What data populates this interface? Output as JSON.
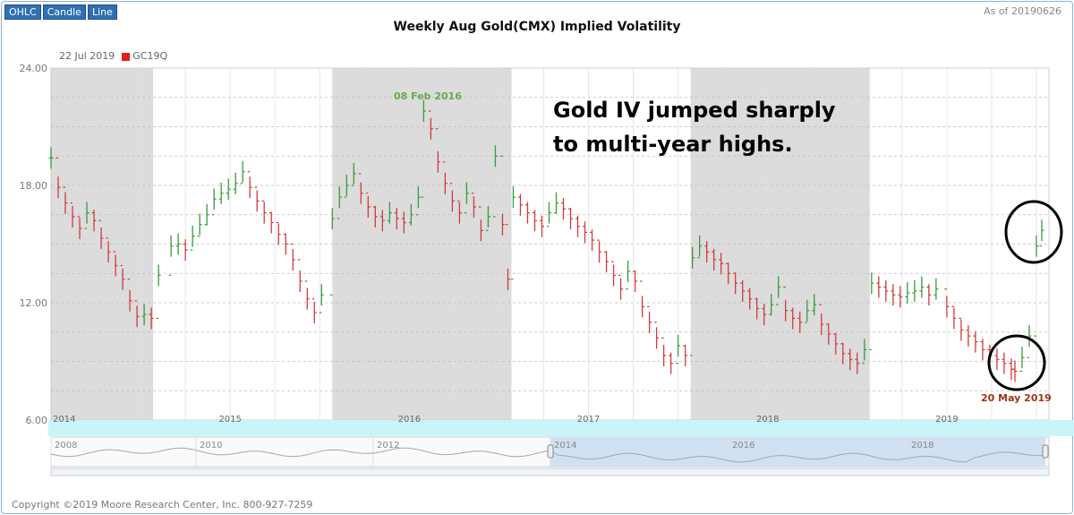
{
  "toolbar": {
    "ohlc": "OHLC",
    "candle": "Candle",
    "line": "Line"
  },
  "as_of": "As of 20190626",
  "legend": {
    "date": "22 Jul 2019",
    "symbol": "GC19Q"
  },
  "annotation": {
    "line1": "Gold IV jumped sharply",
    "line2": "to multi-year highs."
  },
  "callouts": {
    "peak": "08 Feb 2016",
    "low": "20 May 2019"
  },
  "copyright": "Copyright ©2019 Moore Research Center, Inc. 800-927-7259",
  "navigator": {
    "years": [
      "2008",
      "2010",
      "2012",
      "2014",
      "2016",
      "2018"
    ]
  },
  "colors": {
    "up": "#3a9a3a",
    "down": "#d23a3a",
    "shade": "#dcdcdc",
    "navigator_sel": "#cfe1f3"
  },
  "chart_data": {
    "type": "ohlc",
    "title": "Weekly Aug Gold(CMX) Implied Volatility",
    "xlabel": "",
    "ylabel": "",
    "ylim": [
      6,
      24
    ],
    "y_ticks": [
      "6.00",
      "12.00",
      "18.00",
      "24.00"
    ],
    "x_ticks": [
      "2014",
      "2015",
      "2016",
      "2017",
      "2018",
      "2019"
    ],
    "xlim": [
      2014.0,
      2019.57
    ],
    "shaded_periods": [
      [
        2014.0,
        2014.57
      ],
      [
        2015.57,
        2016.57
      ],
      [
        2017.57,
        2018.57
      ]
    ],
    "series": [
      {
        "name": "GC19Q",
        "points": [
          [
            2014.0,
            19.4
          ],
          [
            2014.04,
            17.9
          ],
          [
            2014.08,
            17.1
          ],
          [
            2014.12,
            16.4
          ],
          [
            2014.16,
            15.8
          ],
          [
            2014.2,
            16.6
          ],
          [
            2014.24,
            16.2
          ],
          [
            2014.28,
            15.3
          ],
          [
            2014.32,
            14.6
          ],
          [
            2014.36,
            13.9
          ],
          [
            2014.4,
            13.2
          ],
          [
            2014.44,
            12.1
          ],
          [
            2014.48,
            11.3
          ],
          [
            2014.52,
            11.4
          ],
          [
            2014.56,
            11.2
          ],
          [
            2014.6,
            13.4
          ],
          [
            2014.67,
            14.9
          ],
          [
            2014.71,
            15.0
          ],
          [
            2014.75,
            14.7
          ],
          [
            2014.79,
            15.4
          ],
          [
            2014.83,
            16.0
          ],
          [
            2014.87,
            16.5
          ],
          [
            2014.91,
            17.3
          ],
          [
            2014.95,
            17.6
          ],
          [
            2014.99,
            17.8
          ],
          [
            2015.03,
            18.1
          ],
          [
            2015.07,
            18.7
          ],
          [
            2015.11,
            17.9
          ],
          [
            2015.15,
            17.2
          ],
          [
            2015.19,
            16.6
          ],
          [
            2015.23,
            16.1
          ],
          [
            2015.27,
            15.5
          ],
          [
            2015.31,
            15.0
          ],
          [
            2015.35,
            14.2
          ],
          [
            2015.39,
            13.1
          ],
          [
            2015.43,
            12.2
          ],
          [
            2015.47,
            11.5
          ],
          [
            2015.51,
            12.4
          ],
          [
            2015.57,
            16.3
          ],
          [
            2015.61,
            17.4
          ],
          [
            2015.65,
            18.0
          ],
          [
            2015.69,
            18.6
          ],
          [
            2015.73,
            17.6
          ],
          [
            2015.77,
            16.9
          ],
          [
            2015.81,
            16.4
          ],
          [
            2015.85,
            16.2
          ],
          [
            2015.89,
            16.6
          ],
          [
            2015.93,
            16.3
          ],
          [
            2015.97,
            16.1
          ],
          [
            2016.01,
            16.5
          ],
          [
            2016.05,
            17.4
          ],
          [
            2016.08,
            21.8
          ],
          [
            2016.12,
            20.9
          ],
          [
            2016.16,
            19.2
          ],
          [
            2016.2,
            18.1
          ],
          [
            2016.24,
            17.2
          ],
          [
            2016.28,
            16.6
          ],
          [
            2016.32,
            17.6
          ],
          [
            2016.36,
            16.9
          ],
          [
            2016.4,
            15.7
          ],
          [
            2016.44,
            16.4
          ],
          [
            2016.48,
            19.5
          ],
          [
            2016.52,
            16.0
          ],
          [
            2016.55,
            13.2
          ],
          [
            2016.58,
            17.4
          ],
          [
            2016.62,
            17.0
          ],
          [
            2016.66,
            16.6
          ],
          [
            2016.7,
            16.2
          ],
          [
            2016.74,
            15.9
          ],
          [
            2016.78,
            16.6
          ],
          [
            2016.82,
            17.1
          ],
          [
            2016.86,
            16.8
          ],
          [
            2016.9,
            16.3
          ],
          [
            2016.94,
            15.9
          ],
          [
            2016.98,
            15.6
          ],
          [
            2017.02,
            15.2
          ],
          [
            2017.06,
            14.6
          ],
          [
            2017.1,
            14.1
          ],
          [
            2017.14,
            13.4
          ],
          [
            2017.18,
            12.7
          ],
          [
            2017.22,
            13.6
          ],
          [
            2017.26,
            13.1
          ],
          [
            2017.3,
            11.8
          ],
          [
            2017.34,
            11.0
          ],
          [
            2017.38,
            10.2
          ],
          [
            2017.42,
            9.3
          ],
          [
            2017.46,
            8.9
          ],
          [
            2017.5,
            9.8
          ],
          [
            2017.54,
            9.3
          ],
          [
            2017.58,
            14.3
          ],
          [
            2017.62,
            14.9
          ],
          [
            2017.66,
            14.6
          ],
          [
            2017.7,
            14.2
          ],
          [
            2017.74,
            14.0
          ],
          [
            2017.78,
            13.5
          ],
          [
            2017.82,
            13.0
          ],
          [
            2017.86,
            12.6
          ],
          [
            2017.9,
            12.2
          ],
          [
            2017.94,
            11.7
          ],
          [
            2017.98,
            11.4
          ],
          [
            2018.02,
            11.9
          ],
          [
            2018.06,
            12.8
          ],
          [
            2018.1,
            11.6
          ],
          [
            2018.14,
            11.2
          ],
          [
            2018.18,
            11.0
          ],
          [
            2018.22,
            11.6
          ],
          [
            2018.26,
            11.9
          ],
          [
            2018.3,
            10.9
          ],
          [
            2018.34,
            10.4
          ],
          [
            2018.38,
            9.9
          ],
          [
            2018.42,
            9.4
          ],
          [
            2018.46,
            9.1
          ],
          [
            2018.5,
            8.9
          ],
          [
            2018.54,
            9.6
          ],
          [
            2018.58,
            13.0
          ],
          [
            2018.62,
            12.8
          ],
          [
            2018.66,
            12.6
          ],
          [
            2018.7,
            12.4
          ],
          [
            2018.74,
            12.3
          ],
          [
            2018.78,
            12.5
          ],
          [
            2018.82,
            12.6
          ],
          [
            2018.86,
            12.8
          ],
          [
            2018.9,
            12.4
          ],
          [
            2018.94,
            12.7
          ],
          [
            2019.0,
            11.8
          ],
          [
            2019.04,
            11.2
          ],
          [
            2019.08,
            10.6
          ],
          [
            2019.12,
            10.3
          ],
          [
            2019.16,
            10.0
          ],
          [
            2019.2,
            9.6
          ],
          [
            2019.24,
            9.3
          ],
          [
            2019.28,
            9.1
          ],
          [
            2019.32,
            8.9
          ],
          [
            2019.36,
            8.6
          ],
          [
            2019.38,
            8.5
          ],
          [
            2019.42,
            9.2
          ],
          [
            2019.46,
            10.3
          ],
          [
            2019.5,
            14.9
          ],
          [
            2019.53,
            15.7
          ]
        ]
      }
    ]
  }
}
